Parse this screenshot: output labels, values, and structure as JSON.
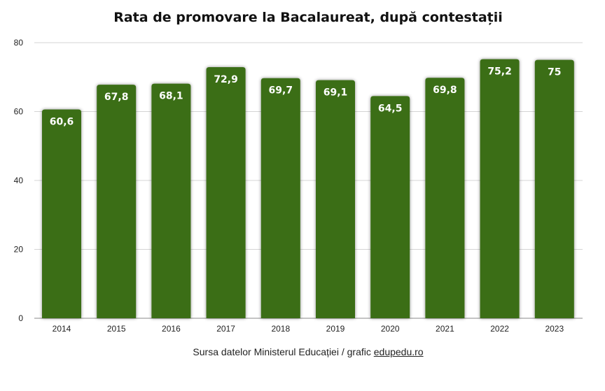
{
  "chart_data": {
    "type": "bar",
    "title": "Rata de promovare la Bacalaureat, după contestații",
    "categories": [
      "2014",
      "2015",
      "2016",
      "2017",
      "2018",
      "2019",
      "2020",
      "2021",
      "2022",
      "2023"
    ],
    "values": [
      60.6,
      67.8,
      68.1,
      72.9,
      69.7,
      69.1,
      64.5,
      69.8,
      75.2,
      75
    ],
    "value_labels": [
      "60,6",
      "67,8",
      "68,1",
      "72,9",
      "69,7",
      "69,1",
      "64,5",
      "69,8",
      "75,2",
      "75"
    ],
    "xlabel": "",
    "ylabel": "",
    "ylim": [
      0,
      80
    ],
    "yticks": [
      0,
      20,
      40,
      60,
      80
    ],
    "grid": true,
    "bar_color": "#3a6e14"
  },
  "footer": {
    "source_text": "Sursa datelor Ministerul Educației / grafic ",
    "link_text": "edupedu.ro"
  }
}
